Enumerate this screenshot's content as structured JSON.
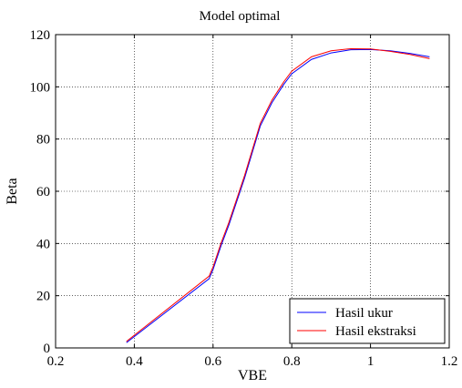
{
  "chart_data": {
    "type": "line",
    "title": "Model optimal",
    "xlabel": "VBE",
    "ylabel": "Beta",
    "xlim": [
      0.2,
      1.2
    ],
    "ylim": [
      0,
      120
    ],
    "xticks": [
      0.2,
      0.4,
      0.6,
      0.8,
      1,
      1.2
    ],
    "xtick_labels": [
      "0.2",
      "0.4",
      "0.6",
      "0.8",
      "1",
      "1.2"
    ],
    "yticks": [
      0,
      20,
      40,
      60,
      80,
      100,
      120
    ],
    "ytick_labels": [
      "0",
      "20",
      "40",
      "60",
      "80",
      "100",
      "120"
    ],
    "grid": true,
    "legend_position": "bottom-right",
    "series": [
      {
        "name": "Hasil ukur",
        "color": "#0000ff",
        "x": [
          0.38,
          0.59,
          0.6,
          0.62,
          0.64,
          0.66,
          0.68,
          0.7,
          0.72,
          0.75,
          0.78,
          0.8,
          0.85,
          0.9,
          0.95,
          1.0,
          1.05,
          1.1,
          1.15
        ],
        "y": [
          2,
          26.5,
          30,
          39,
          47,
          56,
          65,
          75,
          85,
          94,
          101,
          105,
          110.5,
          113,
          114.2,
          114.3,
          113.8,
          112.8,
          111.5
        ]
      },
      {
        "name": "Hasil ekstraksi",
        "color": "#ff0000",
        "x": [
          0.38,
          0.59,
          0.6,
          0.62,
          0.64,
          0.66,
          0.68,
          0.7,
          0.72,
          0.75,
          0.78,
          0.8,
          0.85,
          0.9,
          0.95,
          1.0,
          1.05,
          1.1,
          1.15
        ],
        "y": [
          2.5,
          27.5,
          31,
          40,
          48,
          57,
          66,
          76,
          86,
          95,
          102,
          106,
          111.5,
          113.8,
          114.6,
          114.5,
          113.6,
          112.4,
          110.8
        ]
      }
    ]
  }
}
